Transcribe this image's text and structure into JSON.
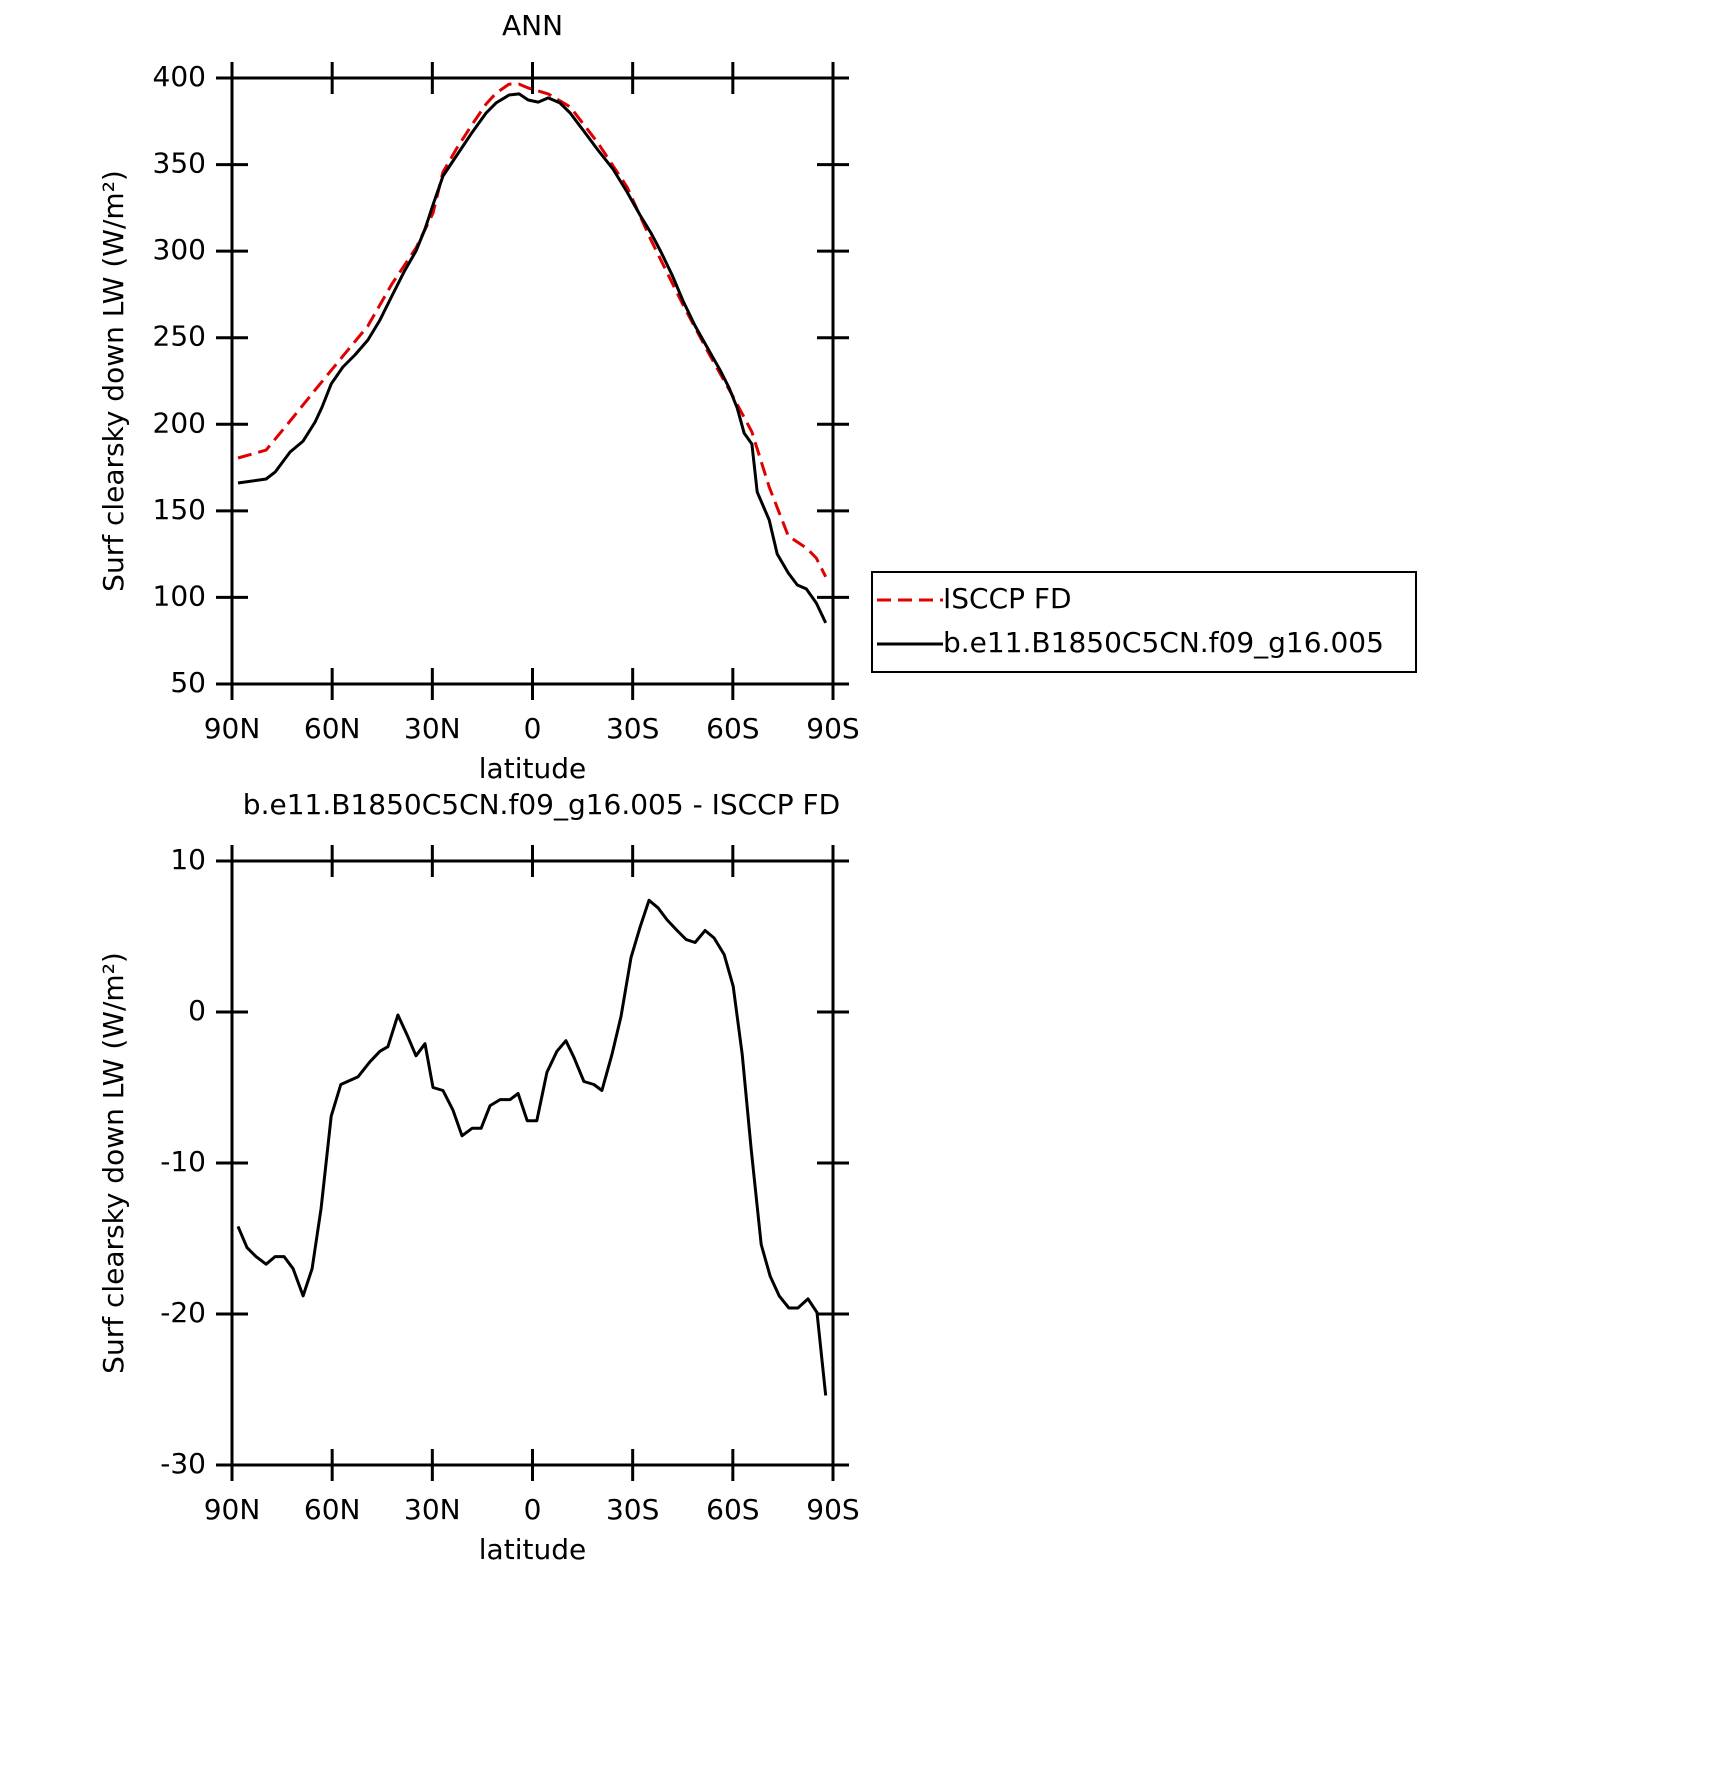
{
  "chart_data": [
    {
      "type": "line",
      "title": "ANN",
      "xlabel": "latitude",
      "ylabel": "Surf clearsky down LW (W/m²)",
      "xlim": [
        90,
        -90
      ],
      "ylim": [
        50,
        400
      ],
      "xticks": [
        {
          "value": 90,
          "label": "90N"
        },
        {
          "value": 60,
          "label": "60N"
        },
        {
          "value": 30,
          "label": "30N"
        },
        0,
        {
          "value": -30,
          "label": "30S"
        },
        {
          "value": -60,
          "label": "60S"
        },
        {
          "value": -90,
          "label": "90S"
        }
      ],
      "yticks": [
        50,
        100,
        150,
        200,
        250,
        300,
        350,
        400
      ],
      "legend": "right-outside",
      "series": [
        {
          "name": "ISCCP FD",
          "color": "#e00000",
          "dash": true,
          "x": [
            88.2,
            79.8,
            72.6,
            65.1,
            56.8,
            49.3,
            42.1,
            34.9,
            29.8,
            26.8,
            22.6,
            18.4,
            13.9,
            10.9,
            7,
            4,
            1.3,
            -4.7,
            -11.3,
            -19.6,
            -28.3,
            -35.5,
            -45.1,
            -52.6,
            -60.1,
            -65.7,
            -70.9,
            -76.6,
            -82,
            -85,
            -87.8
          ],
          "values": [
            180.5,
            185.1,
            201.9,
            219.8,
            239.4,
            256.8,
            281,
            301.8,
            322,
            345.7,
            359.6,
            372.3,
            385,
            391.3,
            396.5,
            396.5,
            394.2,
            390.8,
            383.3,
            362.5,
            337.1,
            306.4,
            268.9,
            241.7,
            215.8,
            195.6,
            163.8,
            135.5,
            128.6,
            122.8,
            111.9
          ]
        },
        {
          "name": "b.e11.B1850C5CN.f09_g16.005",
          "color": "#000000",
          "dash": false,
          "x": [
            88.2,
            79.8,
            77.1,
            72.6,
            68.7,
            65.1,
            63,
            60.3,
            56.8,
            53.2,
            49.3,
            45.7,
            42.1,
            38.5,
            34.9,
            32.2,
            29.8,
            26.8,
            22.6,
            18.4,
            13.9,
            10.9,
            7,
            4,
            1.3,
            -1.7,
            -4.7,
            -8.2,
            -11.3,
            -15.1,
            -19.6,
            -24.1,
            -28.3,
            -32.2,
            -35.5,
            -38.5,
            -41.8,
            -45.1,
            -48.7,
            -52.6,
            -56.2,
            -58.9,
            -61.3,
            -63.4,
            -65.7,
            -67.3,
            -70.9,
            -73.3,
            -76.6,
            -79.3,
            -82,
            -85,
            -87.8
          ],
          "values": [
            166.1,
            168.4,
            172.4,
            184,
            190.3,
            201.3,
            210,
            223.3,
            233.1,
            240,
            248.7,
            260.2,
            274.1,
            288,
            300.1,
            312.8,
            326.7,
            343.4,
            355.5,
            367.7,
            379.8,
            385.6,
            390.2,
            390.8,
            387.3,
            386.1,
            388.5,
            385.6,
            379.8,
            370,
            358.4,
            347.4,
            334.2,
            320.9,
            310.5,
            299.5,
            286.2,
            271.2,
            256.8,
            243.5,
            231.3,
            220.9,
            209.4,
            194.8,
            188.6,
            160.9,
            144.7,
            125.1,
            114.1,
            107.2,
            104.9,
            96.8,
            85.3
          ]
        }
      ]
    },
    {
      "type": "line",
      "title": "b.e11.B1850C5CN.f09_g16.005 - ISCCP FD",
      "xlabel": "latitude",
      "ylabel": "Surf clearsky down LW (W/m²)",
      "xlim": [
        90,
        -90
      ],
      "ylim": [
        -30,
        10
      ],
      "xticks": [
        {
          "value": 90,
          "label": "90N"
        },
        {
          "value": 60,
          "label": "60N"
        },
        {
          "value": 30,
          "label": "30N"
        },
        0,
        {
          "value": -30,
          "label": "30S"
        },
        {
          "value": -60,
          "label": "60S"
        },
        {
          "value": -90,
          "label": "90S"
        }
      ],
      "yticks": [
        -30,
        -20,
        -10,
        0,
        10
      ],
      "series": [
        {
          "color": "#000000",
          "dash": false,
          "x": [
            88.2,
            85.5,
            82.8,
            79.8,
            77.1,
            74.4,
            71.7,
            68.7,
            66,
            63.3,
            60.3,
            57.4,
            52.3,
            48.7,
            45.7,
            43.3,
            40.3,
            37.6,
            34.9,
            32.2,
            29.8,
            26.8,
            23.8,
            21.1,
            18.1,
            15.4,
            12.7,
            9.7,
            6.7,
            4.3,
            1.6,
            -1.3,
            -4.3,
            -7.3,
            -10,
            -12.4,
            -15.4,
            -18.4,
            -20.8,
            -23.8,
            -26.5,
            -29.5,
            -32.2,
            -34.9,
            -37.6,
            -40.3,
            -43.3,
            -46,
            -48.7,
            -51.7,
            -54.4,
            -57.4,
            -60.1,
            -62.8,
            -65.5,
            -68.5,
            -71.2,
            -73.9,
            -76.8,
            -79.5,
            -82.5,
            -85.2,
            -87.8
          ],
          "values": [
            -14.2,
            -15.6,
            -16.2,
            -16.7,
            -16.2,
            -16.2,
            -17,
            -18.8,
            -17,
            -13,
            -6.9,
            -4.8,
            -4.3,
            -3.3,
            -2.6,
            -2.3,
            -0.2,
            -1.5,
            -2.9,
            -2.1,
            -5,
            -5.2,
            -6.5,
            -8.2,
            -7.7,
            -7.7,
            -6.2,
            -5.8,
            -5.8,
            -5.4,
            -7.2,
            -7.2,
            -4,
            -2.6,
            -1.9,
            -3,
            -4.6,
            -4.8,
            -5.2,
            -2.8,
            -0.3,
            3.6,
            5.6,
            7.4,
            6.9,
            6.1,
            5.4,
            4.8,
            4.6,
            5.4,
            4.9,
            3.8,
            1.7,
            -2.8,
            -9.1,
            -15.4,
            -17.5,
            -18.8,
            -19.6,
            -19.6,
            -19,
            -19.9,
            -25.4
          ]
        }
      ]
    }
  ]
}
